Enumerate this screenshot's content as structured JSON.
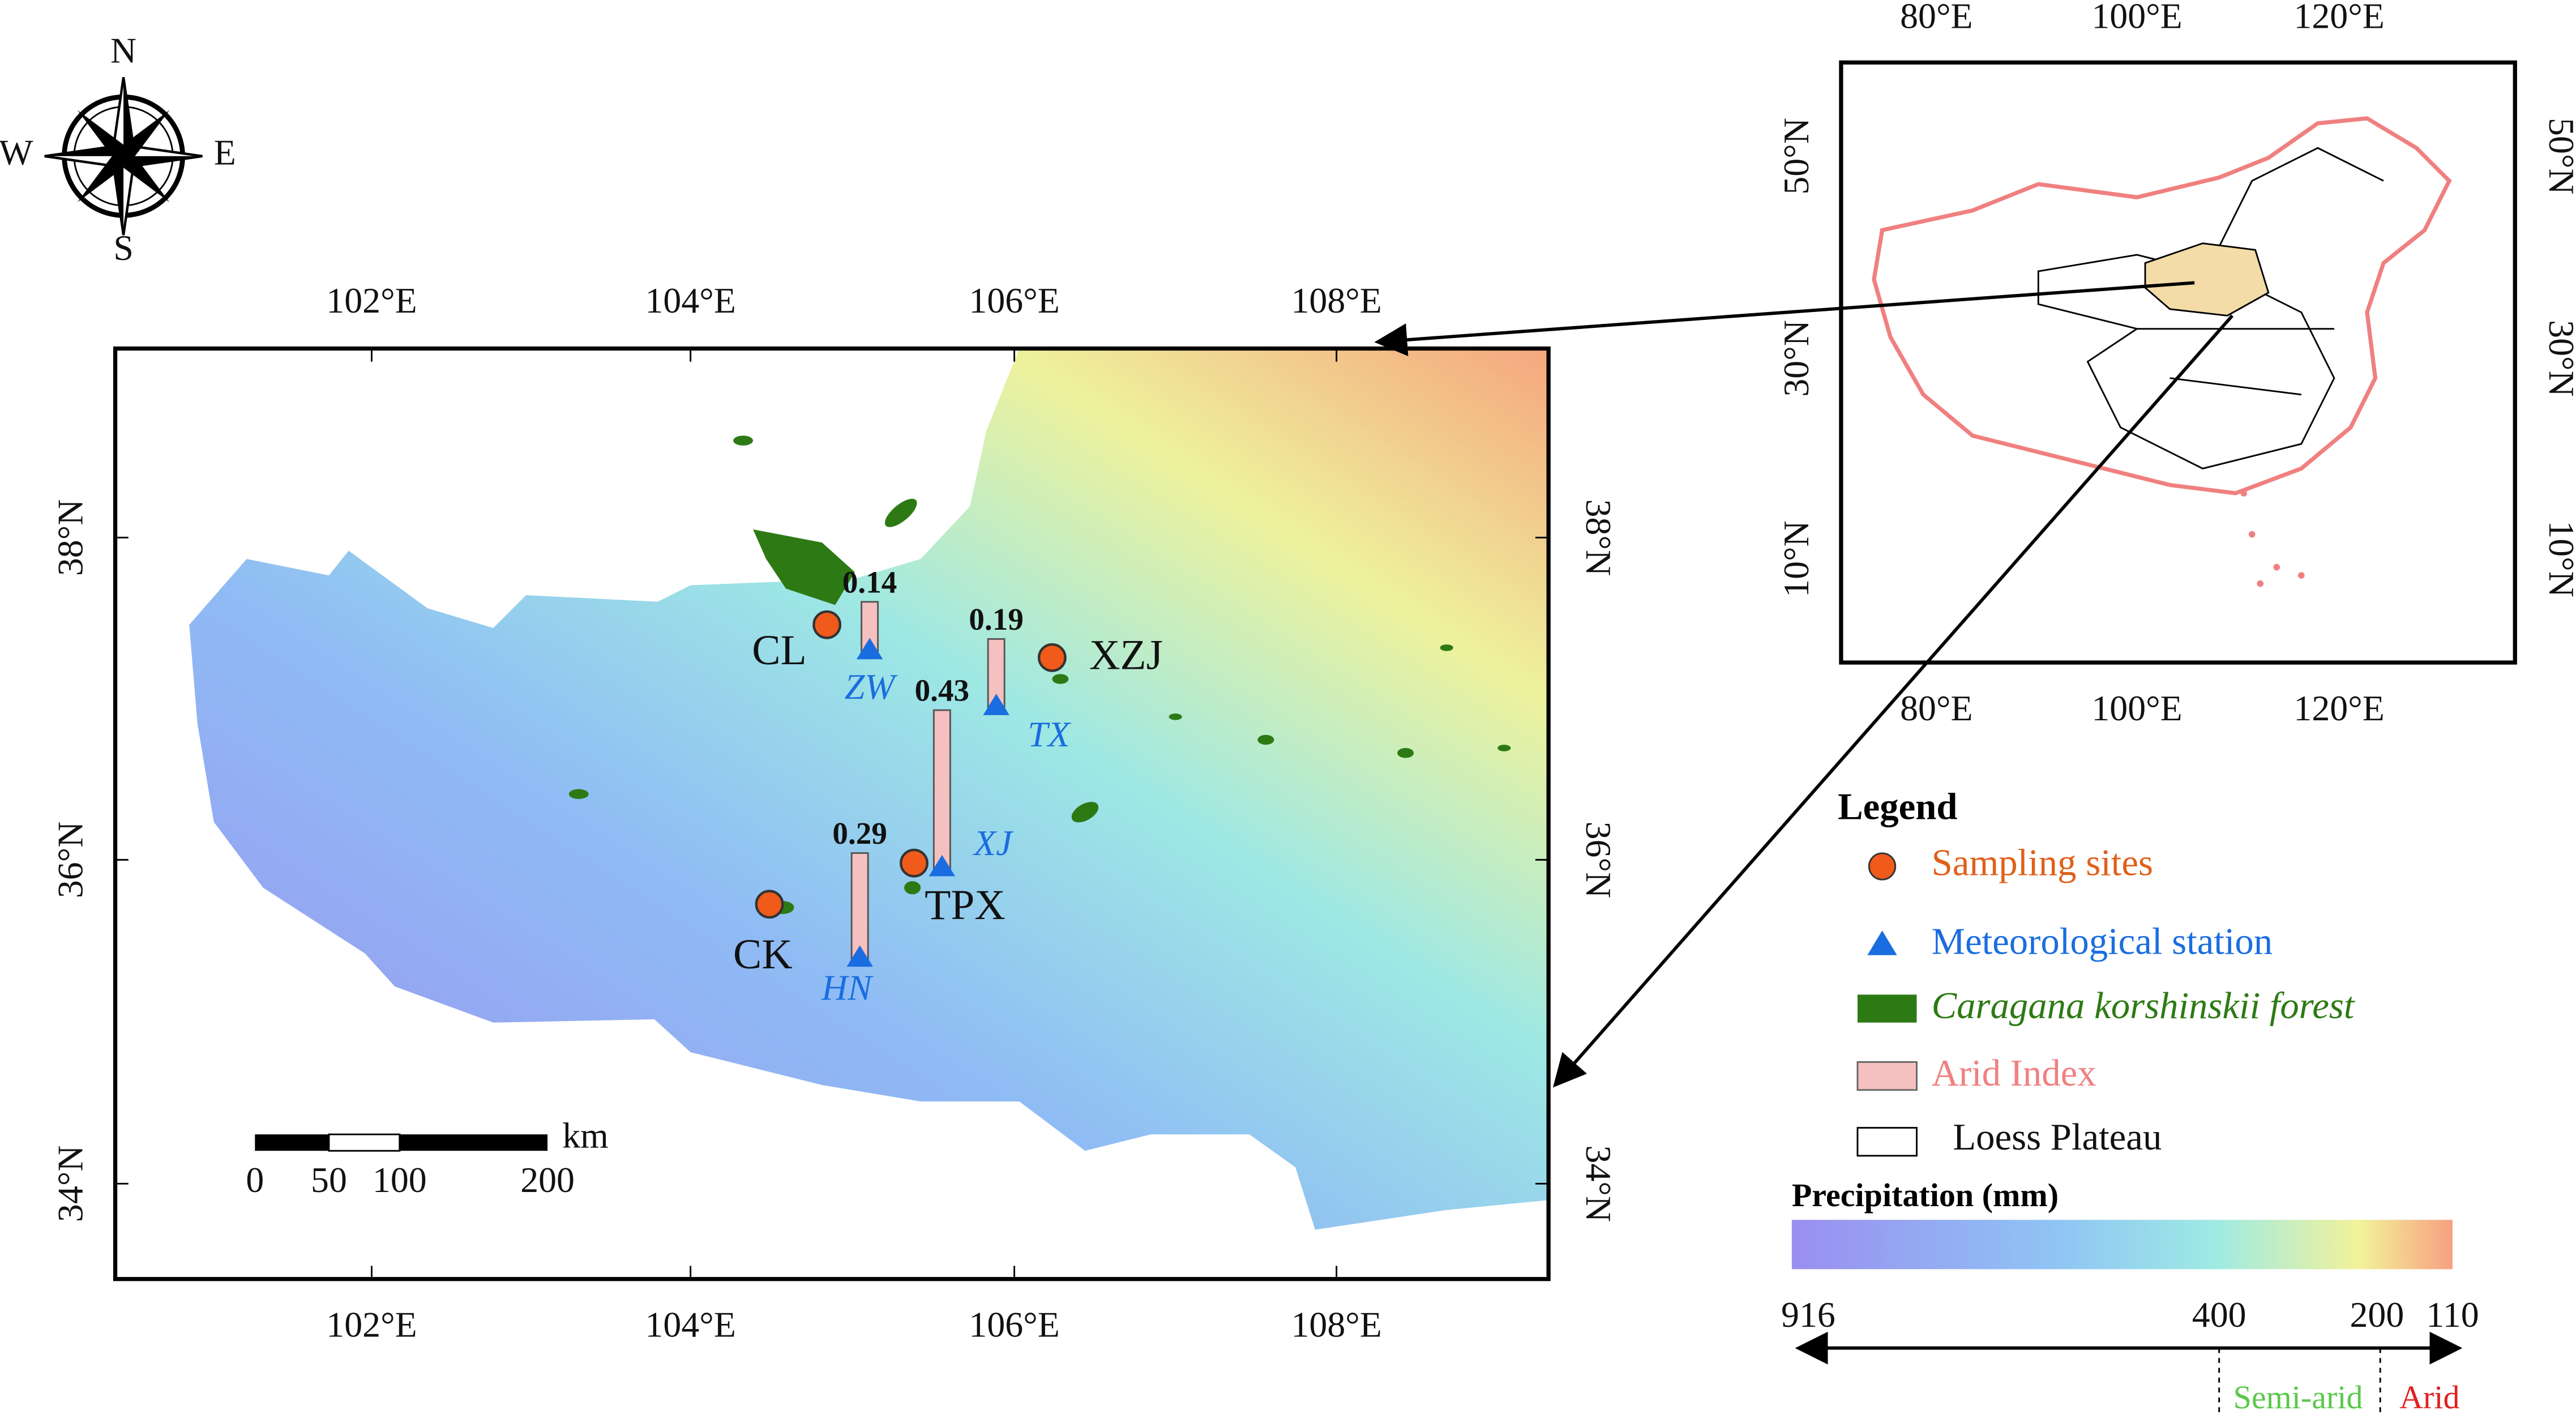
{
  "compass": {
    "n": "N",
    "s": "S",
    "e": "E",
    "w": "W"
  },
  "main_map": {
    "x_ticks": [
      "102°E",
      "104°E",
      "106°E",
      "108°E"
    ],
    "y_ticks": [
      "38°N",
      "36°N",
      "34°N"
    ],
    "sites": [
      "CL",
      "XZJ",
      "TPX",
      "CK"
    ],
    "stations": [
      {
        "label": "ZW",
        "arid_index": 0.14
      },
      {
        "label": "TX",
        "arid_index": 0.19
      },
      {
        "label": "XJ",
        "arid_index": 0.43
      },
      {
        "label": "HN",
        "arid_index": 0.29
      }
    ],
    "scale_bar": {
      "labels": [
        "0",
        "50",
        "100",
        "200"
      ],
      "unit": "km"
    }
  },
  "inset_map": {
    "x_ticks": [
      "80°E",
      "100°E",
      "120°E"
    ],
    "y_ticks": [
      "50°N",
      "30°N",
      "10°N"
    ]
  },
  "legend": {
    "title": "Legend",
    "items": [
      "Sampling sites",
      "Meteorological station",
      "Caragana korshinskii forest",
      "Arid Index",
      "Loess Plateau"
    ],
    "precipitation": {
      "title": "Precipitation (mm)",
      "labels": [
        "916",
        "400",
        "200",
        "110"
      ],
      "zones": [
        "Semi-arid",
        "Arid"
      ]
    }
  }
}
